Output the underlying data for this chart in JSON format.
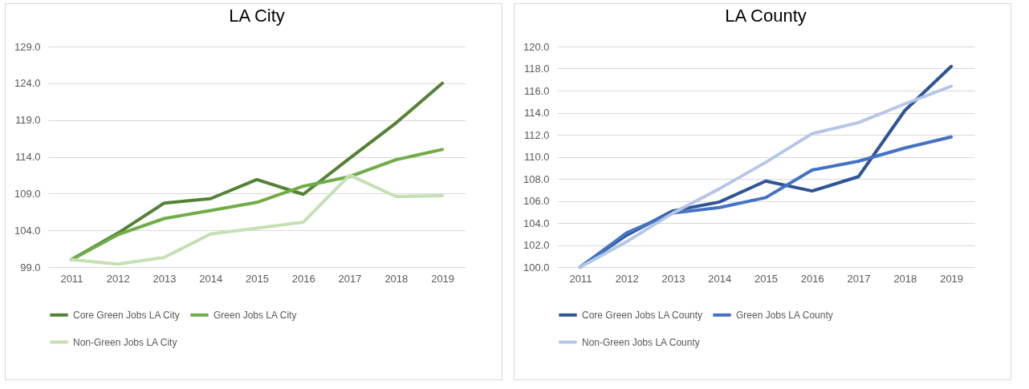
{
  "chart_data": [
    {
      "type": "line",
      "title": "LA City",
      "categories": [
        "2011",
        "2012",
        "2013",
        "2014",
        "2015",
        "2016",
        "2017",
        "2018",
        "2019"
      ],
      "series": [
        {
          "name": "Core Green Jobs LA City",
          "color": "#548235",
          "values": [
            100.0,
            103.6,
            107.7,
            108.3,
            110.9,
            108.9,
            113.8,
            118.6,
            124.0
          ]
        },
        {
          "name": "Green Jobs LA City",
          "color": "#70ad47",
          "values": [
            100.0,
            103.4,
            105.6,
            106.7,
            107.8,
            110.0,
            111.3,
            113.6,
            115.0
          ]
        },
        {
          "name": "Non-Green Jobs LA City",
          "color": "#c5e0b4",
          "values": [
            100.0,
            99.4,
            100.3,
            103.5,
            104.3,
            105.1,
            111.5,
            108.6,
            108.7
          ]
        }
      ],
      "ylim": [
        99,
        129
      ],
      "yticks": [
        {
          "value": 99,
          "label": "99.0"
        },
        {
          "value": 104,
          "label": "104.0"
        },
        {
          "value": 109,
          "label": "109.0"
        },
        {
          "value": 114,
          "label": "114.0"
        },
        {
          "value": 119,
          "label": "119.0"
        },
        {
          "value": 124,
          "label": "124.0"
        },
        {
          "value": 129,
          "label": "129.0"
        }
      ],
      "grid": "y",
      "legend": "bottom"
    },
    {
      "type": "line",
      "title": "LA County",
      "categories": [
        "2011",
        "2012",
        "2013",
        "2014",
        "2015",
        "2016",
        "2017",
        "2018",
        "2019"
      ],
      "series": [
        {
          "name": "Core Green Jobs LA County",
          "color": "#2f5597",
          "values": [
            100.0,
            102.9,
            105.1,
            105.9,
            107.8,
            106.9,
            108.2,
            114.2,
            118.2
          ]
        },
        {
          "name": "Green Jobs LA County",
          "color": "#4472c4",
          "values": [
            100.0,
            103.1,
            104.9,
            105.4,
            106.3,
            108.8,
            109.6,
            110.8,
            111.8
          ]
        },
        {
          "name": "Non-Green Jobs LA County",
          "color": "#b4c7e7",
          "values": [
            100.0,
            102.3,
            104.9,
            107.1,
            109.5,
            112.1,
            113.1,
            114.8,
            116.4
          ]
        }
      ],
      "ylim": [
        100,
        120
      ],
      "yticks": [
        {
          "value": 100,
          "label": "100.0"
        },
        {
          "value": 102,
          "label": "102.0"
        },
        {
          "value": 104,
          "label": "104.0"
        },
        {
          "value": 106,
          "label": "106.0"
        },
        {
          "value": 108,
          "label": "108.0"
        },
        {
          "value": 110,
          "label": "110.0"
        },
        {
          "value": 112,
          "label": "112.0"
        },
        {
          "value": 114,
          "label": "114.0"
        },
        {
          "value": 116,
          "label": "116.0"
        },
        {
          "value": 118,
          "label": "118.0"
        },
        {
          "value": 120,
          "label": "120.0"
        }
      ],
      "grid": "y",
      "legend": "bottom"
    }
  ]
}
